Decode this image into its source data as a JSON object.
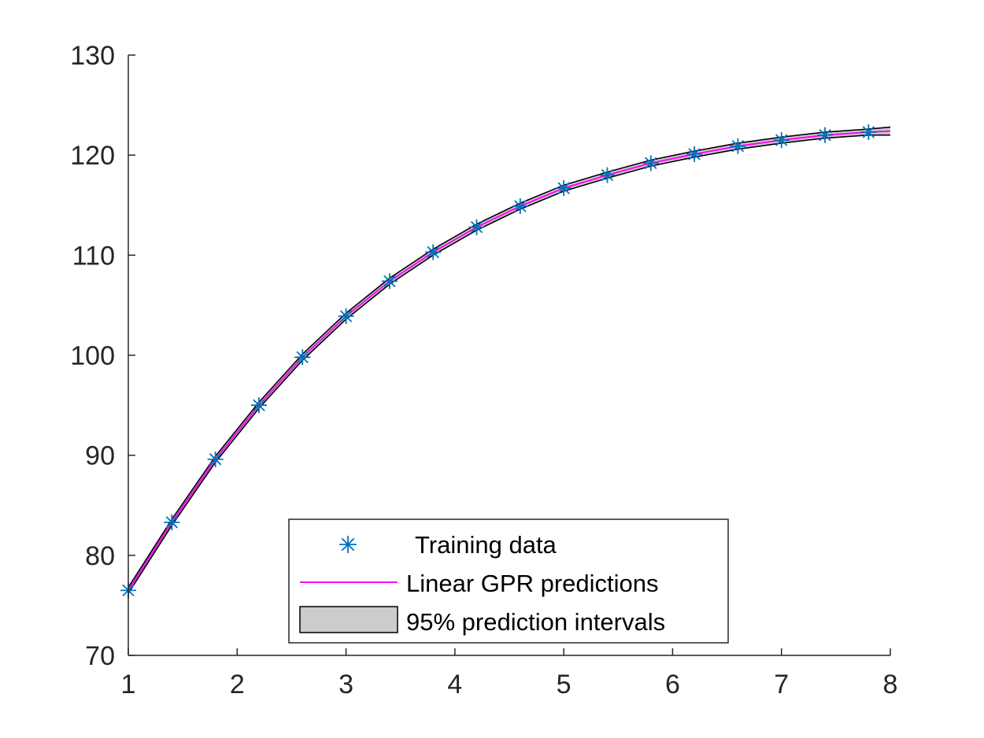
{
  "chart_data": {
    "type": "line",
    "title": "",
    "xlabel": "",
    "ylabel": "",
    "xlim": [
      1,
      8
    ],
    "ylim": [
      70,
      130
    ],
    "x_ticks": [
      1,
      2,
      3,
      4,
      5,
      6,
      7,
      8
    ],
    "y_ticks": [
      70,
      80,
      90,
      100,
      110,
      120,
      130
    ],
    "x_tick_labels": [
      "1",
      "2",
      "3",
      "4",
      "5",
      "6",
      "7",
      "8"
    ],
    "y_tick_labels": [
      "70",
      "80",
      "90",
      "100",
      "110",
      "120",
      "130"
    ],
    "grid": false,
    "legend_position": "bottom-center",
    "series": [
      {
        "name": "Training data",
        "kind": "scatter",
        "marker": "asterisk",
        "color": "#0072BD",
        "x": [
          1.0,
          1.4,
          1.8,
          2.2,
          2.6,
          3.0,
          3.4,
          3.8,
          4.2,
          4.6,
          5.0,
          5.4,
          5.8,
          6.2,
          6.6,
          7.0,
          7.4,
          7.8
        ],
        "y": [
          76.5,
          83.3,
          89.6,
          95.0,
          99.8,
          103.9,
          107.4,
          110.3,
          112.8,
          114.9,
          116.7,
          118.0,
          119.2,
          120.1,
          120.9,
          121.5,
          122.0,
          122.3
        ]
      },
      {
        "name": "Linear GPR predictions",
        "kind": "line",
        "color": "#FF00FF",
        "x": [
          1.0,
          1.4,
          1.8,
          2.2,
          2.6,
          3.0,
          3.4,
          3.8,
          4.2,
          4.6,
          5.0,
          5.4,
          5.8,
          6.2,
          6.6,
          7.0,
          7.4,
          7.8,
          8.0
        ],
        "y": [
          76.5,
          83.3,
          89.6,
          95.0,
          99.8,
          103.9,
          107.4,
          110.3,
          112.8,
          114.9,
          116.7,
          118.0,
          119.2,
          120.1,
          120.9,
          121.5,
          122.0,
          122.3,
          122.4
        ]
      },
      {
        "name": "95% prediction intervals",
        "kind": "band",
        "fill": "#CCCCCC",
        "edge": "#000000",
        "x": [
          1.0,
          1.4,
          1.8,
          2.2,
          2.6,
          3.0,
          3.4,
          3.8,
          4.2,
          4.6,
          5.0,
          5.4,
          5.8,
          6.2,
          6.6,
          7.0,
          7.4,
          7.8,
          8.0
        ],
        "lower": [
          76.2,
          83.0,
          89.3,
          94.7,
          99.5,
          103.6,
          107.1,
          110.0,
          112.5,
          114.6,
          116.4,
          117.7,
          118.9,
          119.8,
          120.6,
          121.2,
          121.7,
          122.0,
          122.0
        ],
        "upper": [
          76.8,
          83.6,
          89.9,
          95.3,
          100.1,
          104.2,
          107.7,
          110.6,
          113.1,
          115.2,
          117.0,
          118.3,
          119.5,
          120.4,
          121.2,
          121.8,
          122.3,
          122.6,
          122.8
        ]
      }
    ]
  }
}
